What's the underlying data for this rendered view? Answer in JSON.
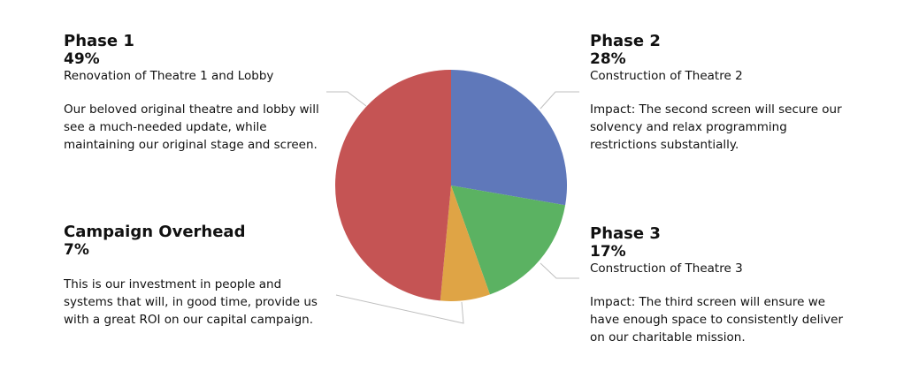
{
  "chart_data": {
    "type": "pie",
    "start": "top",
    "direction": "clockwise",
    "slices": [
      {
        "name": "Phase 2",
        "value": 28,
        "color": "#5F78BA"
      },
      {
        "name": "Phase 3",
        "value": 17,
        "color": "#5BB262"
      },
      {
        "name": "Campaign Overhead",
        "value": 7,
        "color": "#DFA445"
      },
      {
        "name": "Phase 1",
        "value": 49,
        "color": "#C55454"
      }
    ],
    "labels": [
      {
        "title": "Phase 1",
        "pct": "49%",
        "subtitle": "Renovation of Theatre 1 and Lobby",
        "desc": "Our beloved original theatre and lobby will see a much-needed update, while maintaining our original stage and screen."
      },
      {
        "title": "Phase 2",
        "pct": "28%",
        "subtitle": "Construction of Theatre 2",
        "desc": "Impact:  The second screen will secure our solvency and relax programming restrictions substantially."
      },
      {
        "title": "Campaign Overhead",
        "pct": "7%",
        "subtitle": "",
        "desc": "This is our investment in people and systems that will, in good time, provide us with a great ROI on our capital campaign."
      },
      {
        "title": "Phase 3",
        "pct": "17%",
        "subtitle": "Construction of Theatre 3",
        "desc": "Impact:  The third screen will ensure we have enough space to consistently deliver on our charitable mission."
      }
    ]
  }
}
